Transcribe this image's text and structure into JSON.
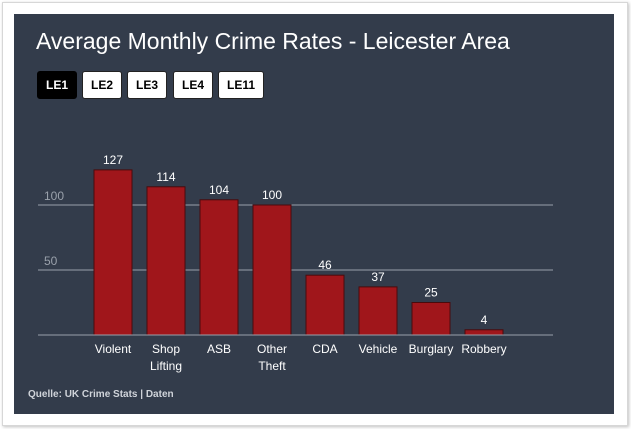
{
  "title": "Average Monthly Crime Rates - Leicester Area",
  "tabs": [
    {
      "label": "LE1",
      "active": true
    },
    {
      "label": "LE2",
      "active": false
    },
    {
      "label": "LE3",
      "active": false
    },
    {
      "label": "LE4",
      "active": false
    },
    {
      "label": "LE11",
      "active": false
    }
  ],
  "source": {
    "label": "Quelle:",
    "value": "UK Crime Stats | Daten"
  },
  "colors": {
    "background": "#333c4b",
    "bar": "#a0161b",
    "bar_outline": "#4a0a0c",
    "gridline": "#9aa1ab",
    "tick_label": "#9aa1ab",
    "text": "#ffffff"
  },
  "chart_data": {
    "type": "bar",
    "title": "Average Monthly Crime Rates - Leicester Area",
    "xlabel": "",
    "ylabel": "",
    "categories": [
      [
        "Violent"
      ],
      [
        "Shop",
        "Lifting"
      ],
      [
        "ASB"
      ],
      [
        "Other",
        "Theft"
      ],
      [
        "CDA"
      ],
      [
        "Vehicle"
      ],
      [
        "Burglary"
      ],
      [
        "Robbery"
      ]
    ],
    "values": [
      127,
      114,
      104,
      100,
      46,
      37,
      25,
      4
    ],
    "y_ticks": [
      50,
      100
    ],
    "ylim": [
      0,
      127
    ],
    "grid": true,
    "data_labels": true,
    "legend": false
  }
}
